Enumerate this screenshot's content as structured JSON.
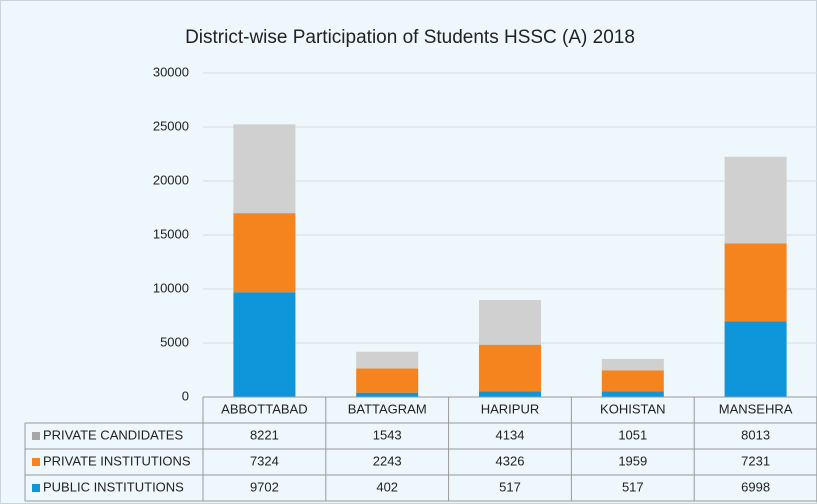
{
  "chart_data": {
    "type": "bar",
    "stacked": true,
    "title": "District-wise Participation of Students HSSC (A) 2018",
    "categories": [
      "ABBOTTABAD",
      "BATTAGRAM",
      "HARIPUR",
      "KOHISTAN",
      "MANSEHRA"
    ],
    "series": [
      {
        "name": "PRIVATE CANDIDATES",
        "color": "#d0d0d0",
        "values": [
          8221,
          1543,
          4134,
          1051,
          8013
        ]
      },
      {
        "name": "PRIVATE INSTITUTIONS",
        "color": "#f5841f",
        "values": [
          7324,
          2243,
          4326,
          1959,
          7231
        ]
      },
      {
        "name": "PUBLIC INSTITUTIONS",
        "color": "#0f95da",
        "values": [
          9702,
          402,
          517,
          517,
          6998
        ]
      }
    ],
    "ylim": [
      0,
      30000
    ],
    "yticks": [
      0,
      5000,
      10000,
      15000,
      20000,
      25000,
      30000
    ],
    "grid": true
  }
}
